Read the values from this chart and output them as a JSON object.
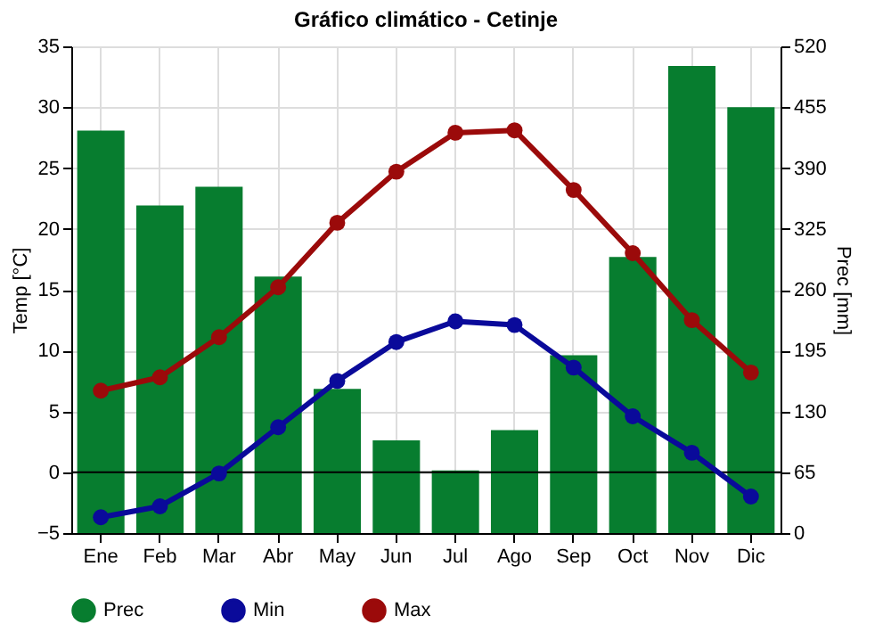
{
  "chart_data": {
    "type": "bar",
    "title": "Gráfico climático - Cetinje",
    "ylabel": "Temp [°C]",
    "y2label": "Prec [mm]",
    "categories": [
      "Ene",
      "Feb",
      "Mar",
      "Abr",
      "May",
      "Jun",
      "Jul",
      "Ago",
      "Sep",
      "Oct",
      "Nov",
      "Dic"
    ],
    "series": [
      {
        "name": "Prec",
        "axis": "y2",
        "color": "#077d2f",
        "values": [
          430,
          350,
          370,
          274,
          154,
          99,
          67,
          110,
          190,
          295,
          499,
          455
        ]
      },
      {
        "name": "Min",
        "type": "line",
        "color": "#0a0a9a",
        "values": [
          -3.7,
          -2.8,
          -0.1,
          3.7,
          7.5,
          10.7,
          12.4,
          12.1,
          8.6,
          4.6,
          1.6,
          -2.0
        ]
      },
      {
        "name": "Max",
        "type": "line",
        "color": "#9b0a0a",
        "values": [
          6.7,
          7.8,
          11.1,
          15.2,
          20.5,
          24.7,
          27.9,
          28.1,
          23.2,
          18.0,
          12.5,
          8.2
        ]
      }
    ],
    "ylim": [
      -5,
      35
    ],
    "yticks": [
      -5,
      0,
      5,
      10,
      15,
      20,
      25,
      30,
      35
    ],
    "y2lim": [
      0,
      520
    ],
    "y2ticks": [
      0,
      65,
      130,
      195,
      260,
      325,
      390,
      455,
      520
    ],
    "ref_lines": [
      {
        "axis": "y",
        "value": 0,
        "color": "#000000"
      }
    ],
    "grid": true,
    "legend": "bottom left",
    "marker": "circle",
    "line_style": "solid"
  }
}
